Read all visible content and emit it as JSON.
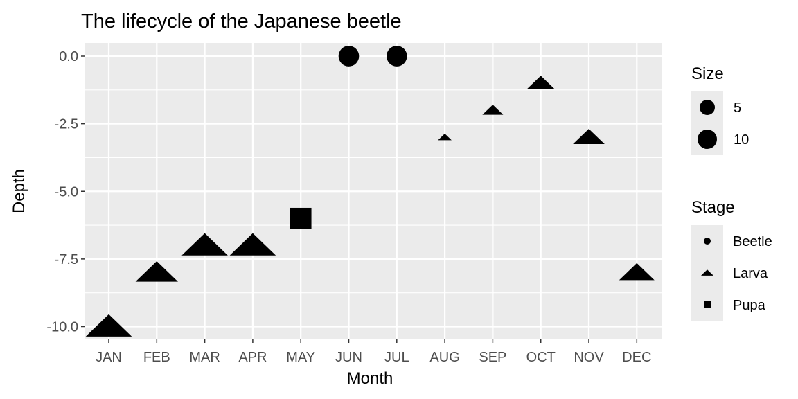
{
  "chart_data": {
    "type": "scatter",
    "title": "The lifecycle of the Japanese beetle",
    "xlabel": "Month",
    "ylabel": "Depth",
    "categories": [
      "JAN",
      "FEB",
      "MAR",
      "APR",
      "MAY",
      "JUN",
      "JUL",
      "AUG",
      "SEP",
      "OCT",
      "NOV",
      "DEC"
    ],
    "ylim": [
      -10.3,
      0.4
    ],
    "yticks": [
      0.0,
      -2.5,
      -5.0,
      -7.5,
      -10.0
    ],
    "ytick_labels": [
      "0.0",
      "-2.5",
      "-5.0",
      "-7.5",
      "-10.0"
    ],
    "grid": true,
    "points": [
      {
        "month": "JAN",
        "depth": -10.0,
        "stage": "Larva",
        "size": 10
      },
      {
        "month": "FEB",
        "depth": -8.0,
        "stage": "Larva",
        "size": 9
      },
      {
        "month": "MAR",
        "depth": -7.0,
        "stage": "Larva",
        "size": 10
      },
      {
        "month": "APR",
        "depth": -7.0,
        "stage": "Larva",
        "size": 10
      },
      {
        "month": "MAY",
        "depth": -6.0,
        "stage": "Pupa",
        "size": 9
      },
      {
        "month": "JUN",
        "depth": 0.0,
        "stage": "Beetle",
        "size": 8
      },
      {
        "month": "JUL",
        "depth": 0.0,
        "stage": "Beetle",
        "size": 8
      },
      {
        "month": "AUG",
        "depth": -3.0,
        "stage": "Larva",
        "size": 1
      },
      {
        "month": "SEP",
        "depth": -2.0,
        "stage": "Larva",
        "size": 3
      },
      {
        "month": "OCT",
        "depth": -1.0,
        "stage": "Larva",
        "size": 5
      },
      {
        "month": "NOV",
        "depth": -3.0,
        "stage": "Larva",
        "size": 6
      },
      {
        "month": "DEC",
        "depth": -8.0,
        "stage": "Larva",
        "size": 7
      }
    ],
    "legend_placement": "right",
    "legend_size": {
      "title": "Size",
      "entries": [
        {
          "label": "5",
          "value": 5
        },
        {
          "label": "10",
          "value": 10
        }
      ]
    },
    "legend_stage": {
      "title": "Stage",
      "entries": [
        {
          "label": "Beetle",
          "shape": "circle"
        },
        {
          "label": "Larva",
          "shape": "triangle"
        },
        {
          "label": "Pupa",
          "shape": "square"
        }
      ]
    },
    "colors": {
      "panel": "#ebebeb",
      "grid": "#ffffff",
      "point": "#000000",
      "tick_text": "#4d4d4d",
      "tick_mark": "#333333"
    }
  }
}
